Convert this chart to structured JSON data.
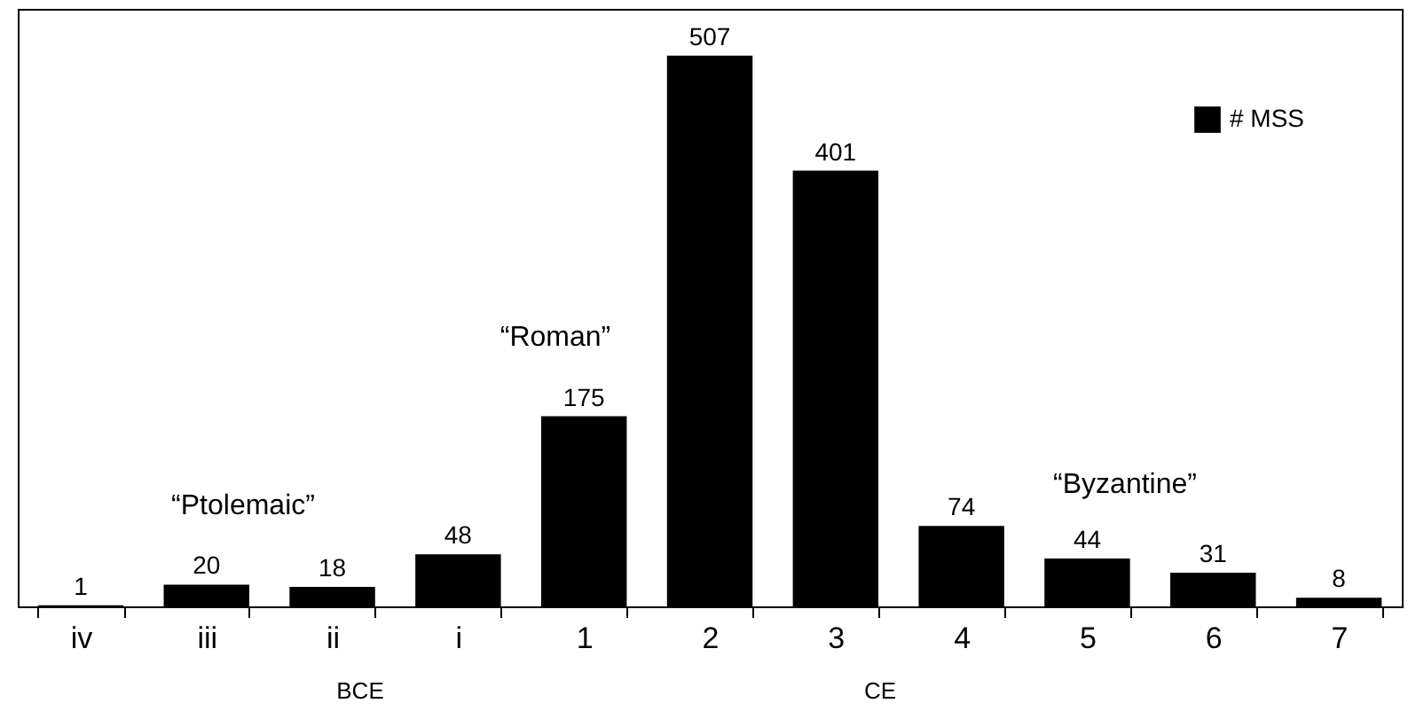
{
  "chart_data": {
    "type": "bar",
    "categories": [
      "iv",
      "iii",
      "ii",
      "i",
      "1",
      "2",
      "3",
      "4",
      "5",
      "6",
      "7"
    ],
    "series": [
      {
        "name": "# MSS",
        "color": "#000000",
        "values": [
          1,
          20,
          18,
          48,
          175,
          507,
          401,
          74,
          44,
          31,
          8
        ]
      }
    ],
    "data_labels": true,
    "legend": "top right",
    "grid": false,
    "annotations": [
      "“Ptolemaic”",
      "“Roman”",
      "“Byzantine”",
      "BCE",
      "CE"
    ]
  }
}
